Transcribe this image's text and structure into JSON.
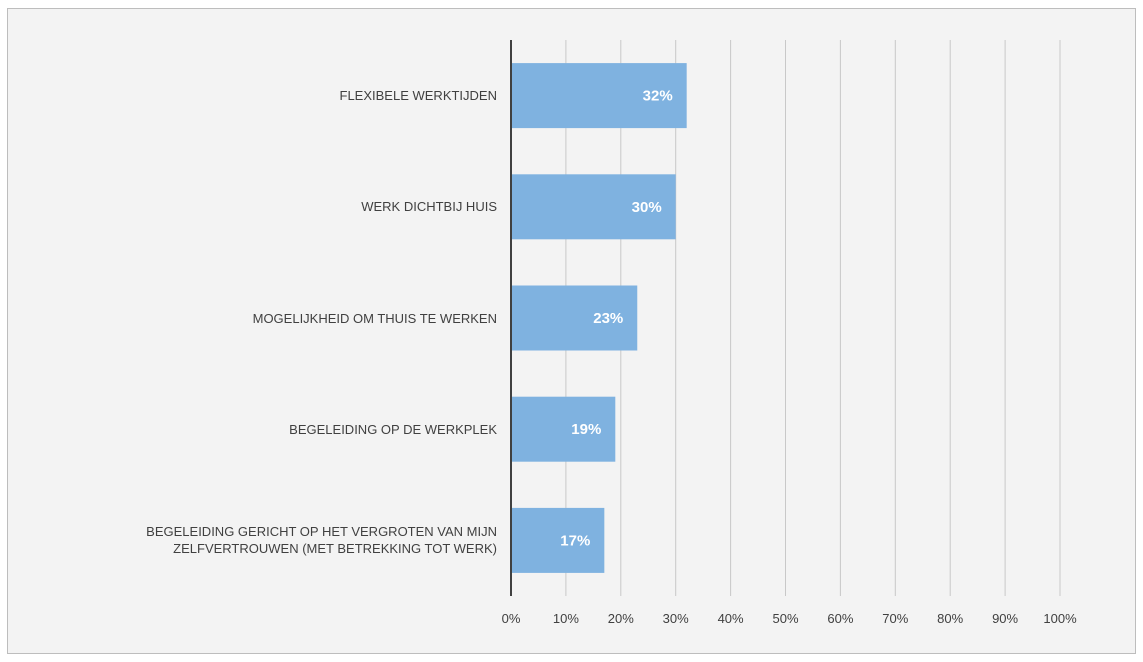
{
  "chart_data": {
    "type": "bar",
    "orientation": "horizontal",
    "categories": [
      "FLEXIBELE WERKTIJDEN",
      "WERK DICHTBIJ HUIS",
      "MOGELIJKHEID OM THUIS TE WERKEN",
      "BEGELEIDING OP DE WERKPLEK",
      "BEGELEIDING GERICHT OP HET VERGROTEN VAN MIJN\nZELFVERTROUWEN (MET BETREKKING TOT WERK)"
    ],
    "values": [
      32,
      30,
      23,
      19,
      17
    ],
    "value_labels": [
      "32%",
      "30%",
      "23%",
      "19%",
      "17%"
    ],
    "xlim": [
      0,
      100
    ],
    "x_ticks": [
      0,
      10,
      20,
      30,
      40,
      50,
      60,
      70,
      80,
      90,
      100
    ],
    "x_tick_labels": [
      "0%",
      "10%",
      "20%",
      "30%",
      "40%",
      "50%",
      "60%",
      "70%",
      "80%",
      "90%",
      "100%"
    ],
    "grid": "vertical",
    "legend": "none",
    "colors": {
      "bar": "#7fb2e0",
      "grid": "#c8c8c8",
      "axis": "#404040",
      "background": "#f3f3f3"
    }
  }
}
